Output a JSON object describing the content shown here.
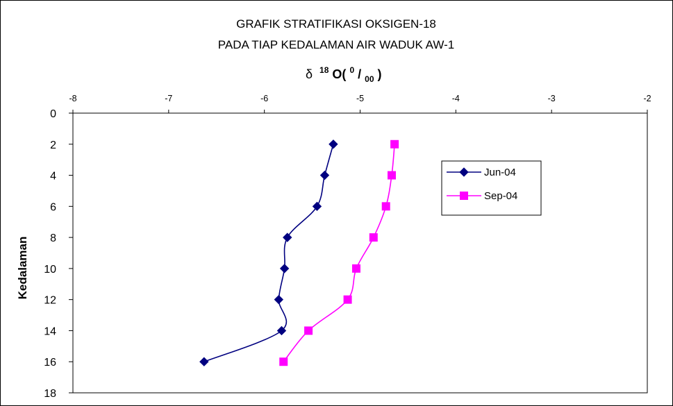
{
  "chart_data": {
    "type": "line",
    "title": "GRAFIK STRATIFIKASI  OKSIGEN-18",
    "subtitle": "PADA TIAP KEDALAMAN AIR WADUK AW-1",
    "xlabel": {
      "delta": "δ",
      "sup1": "18",
      "main": "O(",
      "sup2": "0",
      "slash": "/",
      "sub": "00",
      "close": ")"
    },
    "ylabel": "Kedalaman",
    "xlim": [
      -8,
      -2
    ],
    "ylim": [
      0,
      18
    ],
    "y_inverted": true,
    "x_axis_position": "top",
    "x_ticks": [
      "-8",
      "-7",
      "-6",
      "-5",
      "-4",
      "-3",
      "-2"
    ],
    "y_ticks": [
      "0",
      "2",
      "4",
      "6",
      "8",
      "10",
      "12",
      "14",
      "16",
      "18"
    ],
    "grid": false,
    "legend_position": "right",
    "series": [
      {
        "name": "Jun-04",
        "color": "#000080",
        "marker": "diamond",
        "points": [
          {
            "x": -5.28,
            "y": 2
          },
          {
            "x": -5.37,
            "y": 4
          },
          {
            "x": -5.45,
            "y": 6
          },
          {
            "x": -5.76,
            "y": 8
          },
          {
            "x": -5.79,
            "y": 10
          },
          {
            "x": -5.85,
            "y": 12
          },
          {
            "x": -5.82,
            "y": 14
          },
          {
            "x": -6.63,
            "y": 16
          }
        ]
      },
      {
        "name": "Sep-04",
        "color": "#FF00FF",
        "marker": "square",
        "points": [
          {
            "x": -4.64,
            "y": 2
          },
          {
            "x": -4.67,
            "y": 4
          },
          {
            "x": -4.73,
            "y": 6
          },
          {
            "x": -4.86,
            "y": 8
          },
          {
            "x": -5.04,
            "y": 10
          },
          {
            "x": -5.13,
            "y": 12
          },
          {
            "x": -5.54,
            "y": 14
          },
          {
            "x": -5.8,
            "y": 16
          }
        ]
      }
    ]
  }
}
